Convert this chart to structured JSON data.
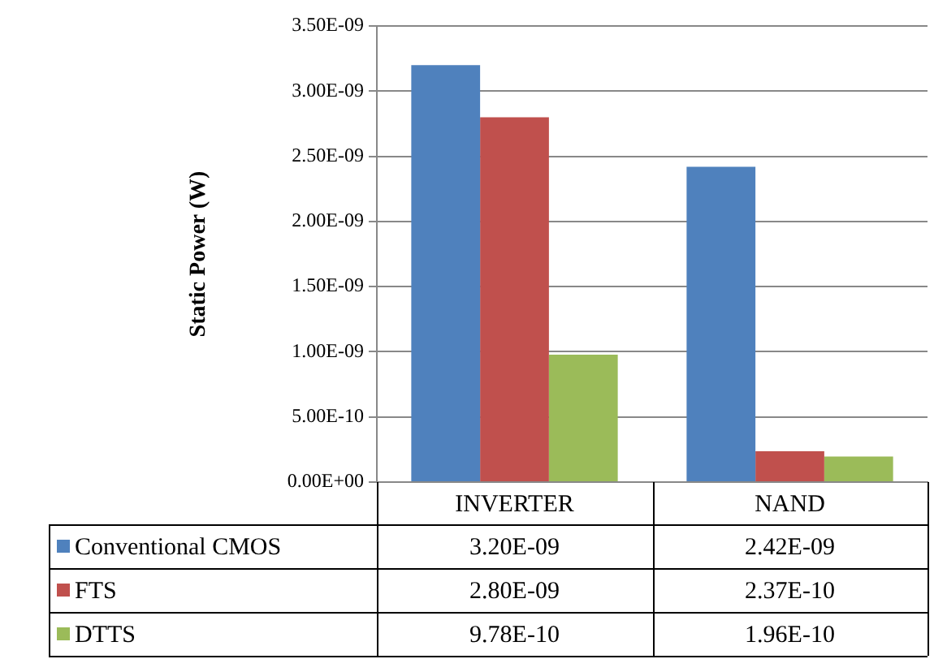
{
  "chart_data": {
    "type": "bar",
    "ylabel": "Static Power (W)",
    "categories": [
      "INVERTER",
      "NAND"
    ],
    "series": [
      {
        "name": "Conventional CMOS",
        "color": "#4f81bd",
        "values": [
          3.2e-09,
          2.42e-09
        ],
        "value_labels": [
          "3.20E-09",
          "2.42E-09"
        ]
      },
      {
        "name": "FTS",
        "color": "#c0504d",
        "values": [
          2.8e-09,
          2.37e-10
        ],
        "value_labels": [
          "2.80E-09",
          "2.37E-10"
        ]
      },
      {
        "name": "DTTS",
        "color": "#9bbb59",
        "values": [
          9.78e-10,
          1.96e-10
        ],
        "value_labels": [
          "9.78E-10",
          "1.96E-10"
        ]
      }
    ],
    "ylim": [
      0,
      3.5e-09
    ],
    "yticks": [
      {
        "value": 0,
        "label": "0.00E+00"
      },
      {
        "value": 5e-10,
        "label": "5.00E-10"
      },
      {
        "value": 1e-09,
        "label": "1.00E-09"
      },
      {
        "value": 1.5e-09,
        "label": "1.50E-09"
      },
      {
        "value": 2e-09,
        "label": "2.00E-09"
      },
      {
        "value": 2.5e-09,
        "label": "2.50E-09"
      },
      {
        "value": 3e-09,
        "label": "3.00E-09"
      },
      {
        "value": 3.5e-09,
        "label": "3.50E-09"
      }
    ],
    "grid": "y",
    "legend": "bottom"
  }
}
